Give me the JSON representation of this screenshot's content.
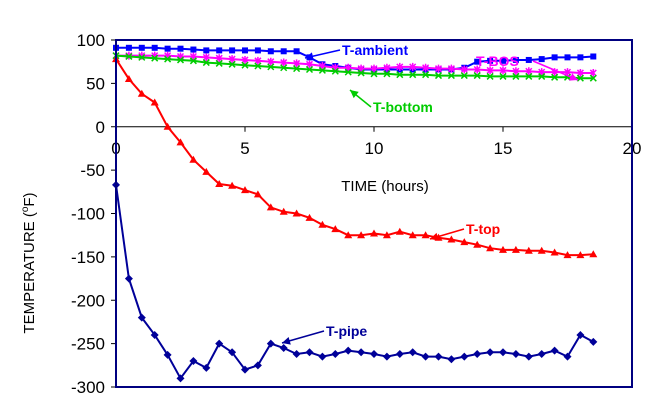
{
  "chart_data": {
    "type": "line",
    "title": "",
    "xlabel": "TIME (hours)",
    "ylabel": "TEMPERATURE (°F)",
    "ylabel_main": "TEMPERATURE (",
    "ylabel_sup": "o",
    "ylabel_end": "F)",
    "xlim": [
      0,
      20
    ],
    "ylim": [
      -300,
      100
    ],
    "xticks": [
      0,
      5,
      10,
      15,
      20
    ],
    "yticks": [
      100,
      50,
      0,
      -50,
      -100,
      -150,
      -200,
      -250,
      -300
    ],
    "grid": false,
    "legend": "callouts",
    "series": [
      {
        "name": "T-ambient",
        "color": "#0000ff",
        "marker": "square",
        "x": [
          0,
          0.5,
          1,
          1.5,
          2,
          2.5,
          3,
          3.5,
          4,
          4.5,
          5,
          5.5,
          6,
          6.5,
          7,
          7.5,
          8,
          8.5,
          9,
          9.5,
          10,
          10.5,
          11,
          11.5,
          12,
          12.5,
          13,
          13.5,
          14,
          14.5,
          15,
          15.5,
          16,
          16.5,
          17,
          17.5,
          18,
          18.5
        ],
        "y": [
          91,
          91,
          91,
          91,
          90,
          90,
          89,
          88,
          88,
          88,
          88,
          88,
          87,
          87,
          87,
          80,
          72,
          70,
          68,
          66,
          66,
          66,
          66,
          66,
          66,
          66,
          66,
          68,
          75,
          76,
          76,
          77,
          77,
          78,
          80,
          80,
          80,
          81
        ]
      },
      {
        "name": "T-BOS",
        "color": "#ff00ff",
        "marker": "star",
        "x": [
          0,
          0.5,
          1,
          1.5,
          2,
          2.5,
          3,
          3.5,
          4,
          4.5,
          5,
          5.5,
          6,
          6.5,
          7,
          7.5,
          8,
          8.5,
          9,
          9.5,
          10,
          10.5,
          11,
          11.5,
          12,
          12.5,
          13,
          13.5,
          14,
          14.5,
          15,
          15.5,
          16,
          16.5,
          17,
          17.5,
          18,
          18.5
        ],
        "y": [
          82,
          82,
          82,
          82,
          82,
          81,
          81,
          80,
          79,
          78,
          77,
          76,
          75,
          74,
          73,
          72,
          70,
          68,
          68,
          67,
          67,
          68,
          69,
          69,
          68,
          67,
          67,
          66,
          66,
          65,
          65,
          64,
          64,
          63,
          63,
          63,
          62,
          62
        ]
      },
      {
        "name": "T-bottom",
        "color": "#00cc00",
        "marker": "x",
        "x": [
          0,
          0.5,
          1,
          1.5,
          2,
          2.5,
          3,
          3.5,
          4,
          4.5,
          5,
          5.5,
          6,
          6.5,
          7,
          7.5,
          8,
          8.5,
          9,
          9.5,
          10,
          10.5,
          11,
          11.5,
          12,
          12.5,
          13,
          13.5,
          14,
          14.5,
          15,
          15.5,
          16,
          16.5,
          17,
          17.5,
          18,
          18.5
        ],
        "y": [
          82,
          81,
          80,
          79,
          78,
          77,
          76,
          74,
          73,
          72,
          71,
          70,
          69,
          68,
          67,
          66,
          65,
          64,
          63,
          62,
          61,
          61,
          60,
          60,
          60,
          59,
          59,
          59,
          59,
          58,
          58,
          58,
          58,
          58,
          57,
          57,
          56,
          56
        ]
      },
      {
        "name": "T-top",
        "color": "#ff0000",
        "marker": "triangle",
        "x": [
          0,
          0.5,
          1,
          1.5,
          2,
          2.5,
          3,
          3.5,
          4,
          4.5,
          5,
          5.5,
          6,
          6.5,
          7,
          7.5,
          8,
          8.5,
          9,
          9.5,
          10,
          10.5,
          11,
          11.5,
          12,
          12.5,
          13,
          13.5,
          14,
          14.5,
          15,
          15.5,
          16,
          16.5,
          17,
          17.5,
          18,
          18.5
        ],
        "y": [
          78,
          55,
          38,
          28,
          0,
          -18,
          -38,
          -52,
          -66,
          -68,
          -73,
          -78,
          -93,
          -98,
          -100,
          -105,
          -113,
          -118,
          -125,
          -125,
          -123,
          -125,
          -121,
          -125,
          -125,
          -128,
          -130,
          -133,
          -136,
          -140,
          -142,
          -142,
          -143,
          -143,
          -145,
          -148,
          -148,
          -147
        ]
      },
      {
        "name": "T-pipe",
        "color": "#000099",
        "marker": "diamond",
        "x": [
          0,
          0.5,
          1,
          1.5,
          2,
          2.5,
          3,
          3.5,
          4,
          4.5,
          5,
          5.5,
          6,
          6.5,
          7,
          7.5,
          8,
          8.5,
          9,
          9.5,
          10,
          10.5,
          11,
          11.5,
          12,
          12.5,
          13,
          13.5,
          14,
          14.5,
          15,
          15.5,
          16,
          16.5,
          17,
          17.5,
          18,
          18.5
        ],
        "y": [
          -67,
          -175,
          -220,
          -240,
          -263,
          -290,
          -270,
          -278,
          -250,
          -260,
          -280,
          -275,
          -250,
          -255,
          -262,
          -260,
          -265,
          -262,
          -258,
          -260,
          -262,
          -265,
          -262,
          -260,
          -265,
          -265,
          -268,
          -265,
          -262,
          -260,
          -260,
          -262,
          -265,
          -262,
          -258,
          -265,
          -240,
          -248
        ]
      }
    ],
    "callouts": [
      {
        "name": "T-ambient",
        "color": "#0000ff"
      },
      {
        "name": "T-BOS",
        "color": "#ff00ff"
      },
      {
        "name": "T-bottom",
        "color": "#00cc00"
      },
      {
        "name": "T-top",
        "color": "#ff0000"
      },
      {
        "name": "T-pipe",
        "color": "#000099"
      }
    ]
  }
}
